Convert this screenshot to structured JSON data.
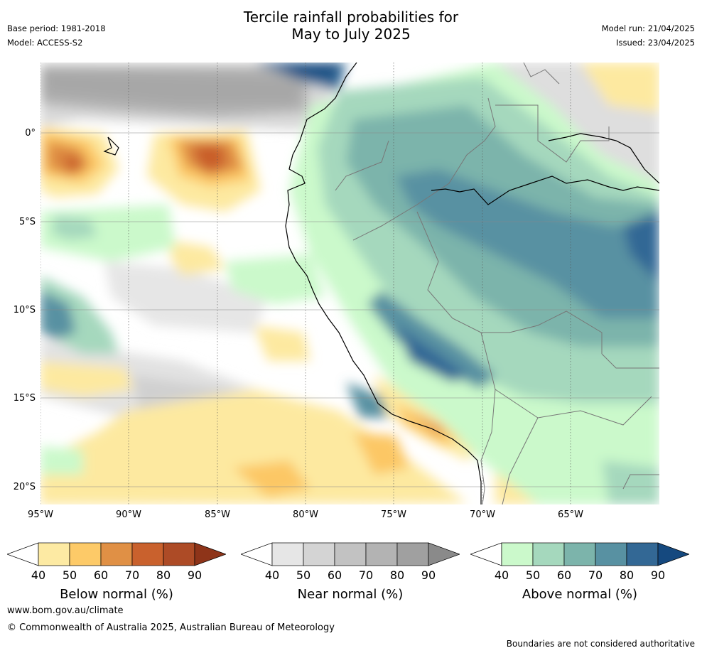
{
  "title": {
    "line1": "Tercile rainfall probabilities for",
    "line2": "May to July 2025"
  },
  "meta": {
    "base_period": "Base period: 1981-2018",
    "model": "Model: ACCESS-S2",
    "model_run": "Model run: 21/04/2025",
    "issued": "Issued: 23/04/2025"
  },
  "axes": {
    "lat_labels": [
      "0°",
      "5°S",
      "10°S",
      "15°S",
      "20°S"
    ],
    "lon_labels": [
      "95°W",
      "90°W",
      "85°W",
      "80°W",
      "75°W",
      "70°W",
      "65°W"
    ]
  },
  "legends": [
    {
      "title": "Below normal (%)",
      "ticks": [
        "40",
        "50",
        "60",
        "70",
        "80",
        "90"
      ],
      "colors": [
        "#ffffff",
        "#fdeaa3",
        "#fdca68",
        "#e09045",
        "#c9612d",
        "#ad4b26",
        "#8e3419"
      ]
    },
    {
      "title": "Near normal (%)",
      "ticks": [
        "40",
        "50",
        "60",
        "70",
        "80",
        "90"
      ],
      "colors": [
        "#ffffff",
        "#e6e6e6",
        "#d4d4d4",
        "#c2c2c2",
        "#b3b3b3",
        "#a0a0a0",
        "#8a8a8a"
      ]
    },
    {
      "title": "Above normal (%)",
      "ticks": [
        "40",
        "50",
        "60",
        "70",
        "80",
        "90"
      ],
      "colors": [
        "#ffffff",
        "#cbf9cb",
        "#a5d8bd",
        "#7cb4ab",
        "#5891a2",
        "#336895",
        "#15497f"
      ]
    }
  ],
  "footer": {
    "url": "www.bom.gov.au/climate",
    "copyright": "© Commonwealth of Australia 2025, Australian Bureau of Meteorology",
    "disclaimer": "Boundaries are not considered authoritative"
  }
}
